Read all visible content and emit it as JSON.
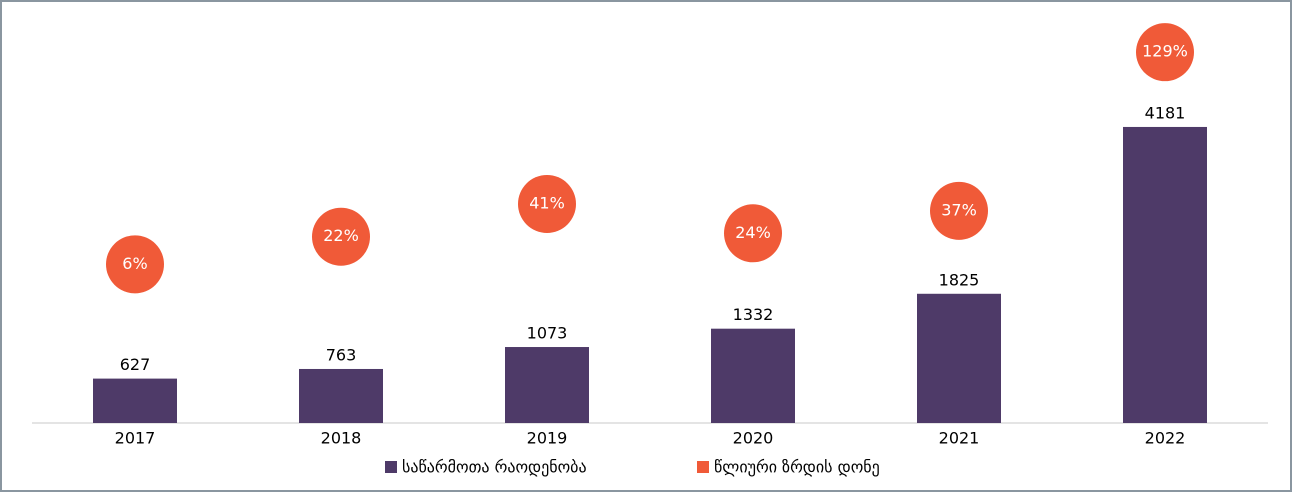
{
  "chart_data": {
    "type": "bar",
    "categories": [
      "2017",
      "2018",
      "2019",
      "2020",
      "2021",
      "2022"
    ],
    "series": [
      {
        "name": "საწარმოთა რაოდენობა",
        "type": "bar",
        "color": "#4e3a68",
        "values": [
          627,
          763,
          1073,
          1332,
          1825,
          4181
        ]
      },
      {
        "name": "წლიური ზრდის დონე",
        "type": "scatter",
        "axis": "y2",
        "color": "#f05a38",
        "values": [
          6,
          22,
          41,
          24,
          37,
          129
        ],
        "value_labels": [
          "6%",
          "22%",
          "41%",
          "24%",
          "37%",
          "129%"
        ]
      }
    ],
    "ylim": [
      0,
      5700
    ],
    "y2lim": [
      -86,
      148
    ],
    "legend": "bottom"
  }
}
